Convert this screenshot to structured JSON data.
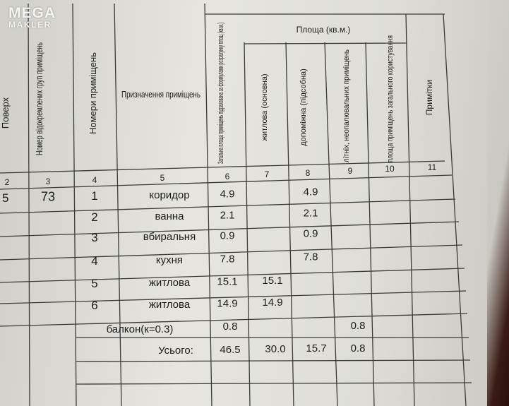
{
  "watermark": {
    "line1": "MEGA",
    "line2": "MAKLER"
  },
  "table": {
    "group_header": "Площа (кв.м.)",
    "headers": {
      "c1": "Поверх",
      "c2": "Номер відокремлених груп приміщень",
      "c3": "Номери приміщень",
      "c4": "Призначення приміщень",
      "c5": "Загальна площа приміщень підрахована за формулами розрахунку площ (кв.м.)",
      "c6": "житлова (основна)",
      "c7": "допоміжна (підсобна)",
      "c8": "літніх, неопалювальних приміщень",
      "c9": "площа приміщень загального користування",
      "c10": "Примітки"
    },
    "numbers": [
      "2",
      "3",
      "4",
      "5",
      "6",
      "7",
      "8",
      "9",
      "10",
      "11"
    ],
    "rows": [
      {
        "floor": "5",
        "group": "73",
        "room": "1",
        "purpose": "коридор",
        "total": "4.9",
        "living": "",
        "aux": "4.9",
        "summer": ""
      },
      {
        "floor": "",
        "group": "",
        "room": "2",
        "purpose": "ванна",
        "total": "2.1",
        "living": "",
        "aux": "2.1",
        "summer": ""
      },
      {
        "floor": "",
        "group": "",
        "room": "3",
        "purpose": "вбиральня",
        "total": "0.9",
        "living": "",
        "aux": "0.9",
        "summer": ""
      },
      {
        "floor": "",
        "group": "",
        "room": "4",
        "purpose": "кухня",
        "total": "7.8",
        "living": "",
        "aux": "7.8",
        "summer": ""
      },
      {
        "floor": "",
        "group": "",
        "room": "5",
        "purpose": "житлова",
        "total": "15.1",
        "living": "15.1",
        "aux": "",
        "summer": ""
      },
      {
        "floor": "",
        "group": "",
        "room": "6",
        "purpose": "житлова",
        "total": "14.9",
        "living": "14.9",
        "aux": "",
        "summer": ""
      }
    ],
    "balcony": {
      "label": "балкон(к=0.3)",
      "total": "0.8",
      "summer": "0.8"
    },
    "totals": {
      "label": "Усього:",
      "total": "46.5",
      "living": "30.0",
      "aux": "15.7",
      "summer": "0.8"
    }
  }
}
